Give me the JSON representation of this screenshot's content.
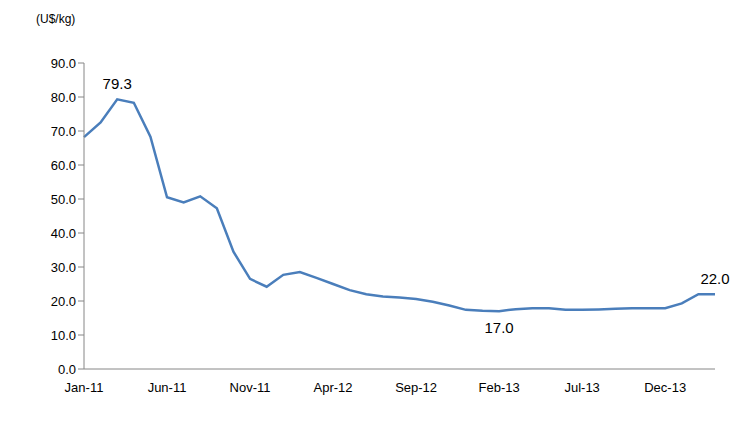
{
  "chart_data": {
    "type": "line",
    "y_label": "(U$/kg)",
    "categories": [
      "Jan-11",
      null,
      null,
      null,
      null,
      "Jun-11",
      null,
      null,
      null,
      null,
      "Nov-11",
      null,
      null,
      null,
      null,
      "Apr-12",
      null,
      null,
      null,
      null,
      "Sep-12",
      null,
      null,
      null,
      null,
      "Feb-13",
      null,
      null,
      null,
      null,
      "Jul-13",
      null,
      null,
      null,
      null,
      "Dec-13",
      null,
      null,
      null
    ],
    "values": [
      68.2,
      72.5,
      79.3,
      78.3,
      68.3,
      50.5,
      49.0,
      50.8,
      47.3,
      34.5,
      26.5,
      24.2,
      27.7,
      28.5,
      26.8,
      25.0,
      23.2,
      22.0,
      21.3,
      21.0,
      20.6,
      19.8,
      18.7,
      17.4,
      17.1,
      17.0,
      17.6,
      17.9,
      17.9,
      17.4,
      17.4,
      17.5,
      17.7,
      17.9,
      17.9,
      17.9,
      19.3,
      22.0,
      22.0
    ],
    "value_labels": [
      null,
      null,
      "79.3",
      null,
      null,
      null,
      null,
      null,
      null,
      null,
      null,
      null,
      null,
      null,
      null,
      null,
      null,
      null,
      null,
      null,
      null,
      null,
      null,
      null,
      null,
      "17.0",
      null,
      null,
      null,
      null,
      null,
      null,
      null,
      null,
      null,
      null,
      null,
      null,
      "22.0"
    ],
    "color": "#4a7ebb",
    "ylim": [
      0,
      90
    ],
    "yticks": [
      {
        "value": 0,
        "label": "0.0"
      },
      {
        "value": 10,
        "label": "10.0"
      },
      {
        "value": 20,
        "label": "20.0"
      },
      {
        "value": 30,
        "label": "30.0"
      },
      {
        "value": 40,
        "label": "40.0"
      },
      {
        "value": 50,
        "label": "50.0"
      },
      {
        "value": 60,
        "label": "60.0"
      },
      {
        "value": 70,
        "label": "70.0"
      },
      {
        "value": 80,
        "label": "80.0"
      },
      {
        "value": 90,
        "label": "90.0"
      }
    ],
    "grid": false
  }
}
